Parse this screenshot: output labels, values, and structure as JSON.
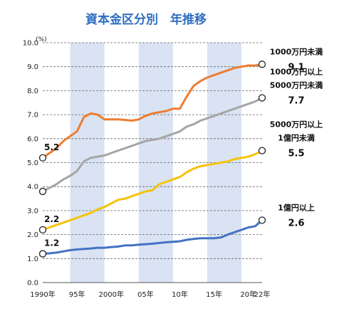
{
  "chart_data": {
    "type": "line",
    "title": "資本金区分別　年推移",
    "unit": "(%)",
    "ylim": [
      0,
      10
    ],
    "yticks": [
      "0.0",
      "1.0",
      "2.0",
      "3.0",
      "4.0",
      "5.0",
      "6.0",
      "7.0",
      "8.0",
      "9.0",
      "10.0"
    ],
    "xlim": [
      1990,
      2022
    ],
    "xticks": [
      {
        "x": 1990,
        "label": "1990年"
      },
      {
        "x": 1995,
        "label": "95年"
      },
      {
        "x": 2000,
        "label": "2000年"
      },
      {
        "x": 2005,
        "label": "05年"
      },
      {
        "x": 2010,
        "label": "10年"
      },
      {
        "x": 2015,
        "label": "15年"
      },
      {
        "x": 2020,
        "label": "20年"
      },
      {
        "x": 2022,
        "label": "22年"
      }
    ],
    "shaded_ranges": [
      [
        1994,
        1999
      ],
      [
        2004,
        2009
      ],
      [
        2014,
        2019
      ]
    ],
    "grid": "horizontal dashed",
    "x": [
      1990,
      1991,
      1992,
      1993,
      1994,
      1995,
      1996,
      1997,
      1998,
      1999,
      2000,
      2001,
      2002,
      2003,
      2004,
      2005,
      2006,
      2007,
      2008,
      2009,
      2010,
      2011,
      2012,
      2013,
      2014,
      2015,
      2016,
      2017,
      2018,
      2019,
      2020,
      2021,
      2022
    ],
    "series": [
      {
        "label_lines": [
          "1000万円未満"
        ],
        "color": "#ed7d31",
        "start_label": "5.2",
        "end_label": "9.1",
        "values": [
          5.2,
          5.4,
          5.6,
          5.9,
          6.1,
          6.3,
          6.9,
          7.05,
          7.0,
          6.8,
          6.8,
          6.8,
          6.78,
          6.75,
          6.8,
          6.95,
          7.05,
          7.1,
          7.15,
          7.25,
          7.25,
          7.75,
          8.2,
          8.4,
          8.55,
          8.65,
          8.75,
          8.85,
          8.95,
          9.0,
          9.05,
          9.05,
          9.1
        ]
      },
      {
        "label_lines": [
          "1000万円以上",
          "5000万円未満"
        ],
        "color": "#a5a5a5",
        "start_label": "",
        "end_label": "7.7",
        "values": [
          3.8,
          3.95,
          4.1,
          4.3,
          4.45,
          4.65,
          5.05,
          5.2,
          5.25,
          5.3,
          5.4,
          5.5,
          5.6,
          5.7,
          5.8,
          5.9,
          5.95,
          6.0,
          6.1,
          6.2,
          6.3,
          6.5,
          6.6,
          6.75,
          6.85,
          6.95,
          7.05,
          7.15,
          7.25,
          7.35,
          7.45,
          7.55,
          7.7
        ]
      },
      {
        "label_lines": [
          "5000万円以上",
          "1億円未満"
        ],
        "color": "#f5c30c",
        "start_label": "2.2",
        "end_label": "5.5",
        "values": [
          2.2,
          2.3,
          2.4,
          2.5,
          2.6,
          2.7,
          2.8,
          2.9,
          3.05,
          3.15,
          3.3,
          3.45,
          3.5,
          3.6,
          3.7,
          3.8,
          3.85,
          4.1,
          4.2,
          4.3,
          4.4,
          4.6,
          4.75,
          4.85,
          4.9,
          4.95,
          5.0,
          5.05,
          5.15,
          5.2,
          5.25,
          5.35,
          5.5
        ]
      },
      {
        "label_lines": [
          "1億円以上"
        ],
        "color": "#4472c4",
        "start_label": "1.2",
        "end_label": "2.6",
        "values": [
          1.2,
          1.22,
          1.25,
          1.3,
          1.35,
          1.38,
          1.4,
          1.42,
          1.45,
          1.45,
          1.48,
          1.5,
          1.55,
          1.55,
          1.58,
          1.6,
          1.62,
          1.65,
          1.68,
          1.7,
          1.72,
          1.78,
          1.82,
          1.85,
          1.85,
          1.85,
          1.88,
          2.0,
          2.1,
          2.2,
          2.3,
          2.35,
          2.6
        ]
      }
    ]
  }
}
